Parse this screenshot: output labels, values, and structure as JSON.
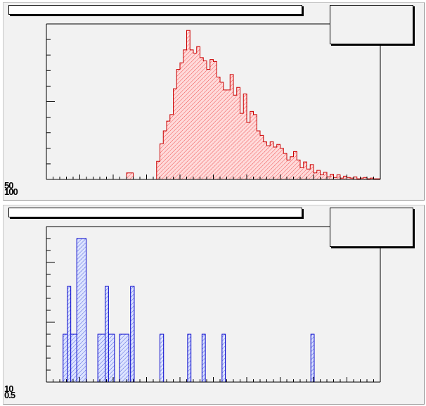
{
  "pads": [
    {
      "title": "",
      "stats": "",
      "y_tick_text_top": "50",
      "y_tick_text_bottom": "100",
      "color": "#cc0000",
      "fill": "#ffdada",
      "hatch_color": "#ee5555"
    },
    {
      "title": "",
      "stats": "",
      "y_tick_text_top": "10",
      "y_tick_text_bottom": "0.5",
      "color": "#0000cc",
      "fill": "#dde4ff",
      "hatch_color": "#5566dd"
    }
  ],
  "chart_data": [
    {
      "type": "bar",
      "title": "",
      "xlabel": "",
      "ylabel": "",
      "x_range": [
        0,
        100
      ],
      "ylim": [
        0,
        240
      ],
      "bin_width": 1,
      "bins_start": 0,
      "values": [
        0,
        0,
        0,
        0,
        0,
        0,
        0,
        0,
        0,
        0,
        0,
        0,
        0,
        0,
        0,
        0,
        0,
        0,
        0,
        0,
        0,
        0,
        0,
        0,
        10,
        10,
        0,
        0,
        0,
        0,
        0,
        0,
        0,
        28,
        55,
        75,
        90,
        100,
        140,
        170,
        180,
        200,
        230,
        200,
        195,
        205,
        188,
        183,
        170,
        185,
        182,
        158,
        150,
        138,
        138,
        162,
        130,
        142,
        102,
        132,
        88,
        105,
        100,
        75,
        68,
        58,
        52,
        58,
        50,
        54,
        48,
        40,
        30,
        35,
        43,
        30,
        18,
        27,
        16,
        23,
        10,
        14,
        7,
        11,
        4,
        8,
        3,
        7,
        2,
        5,
        3,
        2,
        4,
        1,
        2,
        3,
        1,
        2,
        1,
        1
      ]
    },
    {
      "type": "bar",
      "title": "",
      "xlabel": "",
      "ylabel": "",
      "x_range": [
        0,
        100
      ],
      "ylim": [
        0,
        13
      ],
      "bins": [
        {
          "x0": 5.0,
          "x1": 6.3,
          "value": 4
        },
        {
          "x0": 6.3,
          "x1": 7.3,
          "value": 8
        },
        {
          "x0": 7.3,
          "x1": 9.1,
          "value": 4
        },
        {
          "x0": 9.1,
          "x1": 11.9,
          "value": 12
        },
        {
          "x0": 15.4,
          "x1": 17.6,
          "value": 4
        },
        {
          "x0": 17.6,
          "x1": 18.6,
          "value": 8
        },
        {
          "x0": 18.6,
          "x1": 20.4,
          "value": 4
        },
        {
          "x0": 21.9,
          "x1": 24.7,
          "value": 4
        },
        {
          "x0": 25.2,
          "x1": 26.3,
          "value": 8
        },
        {
          "x0": 34.0,
          "x1": 35.1,
          "value": 4
        },
        {
          "x0": 42.3,
          "x1": 43.3,
          "value": 4
        },
        {
          "x0": 46.6,
          "x1": 47.6,
          "value": 4
        },
        {
          "x0": 52.6,
          "x1": 53.6,
          "value": 4
        },
        {
          "x0": 79.2,
          "x1": 80.2,
          "value": 4
        }
      ]
    }
  ]
}
